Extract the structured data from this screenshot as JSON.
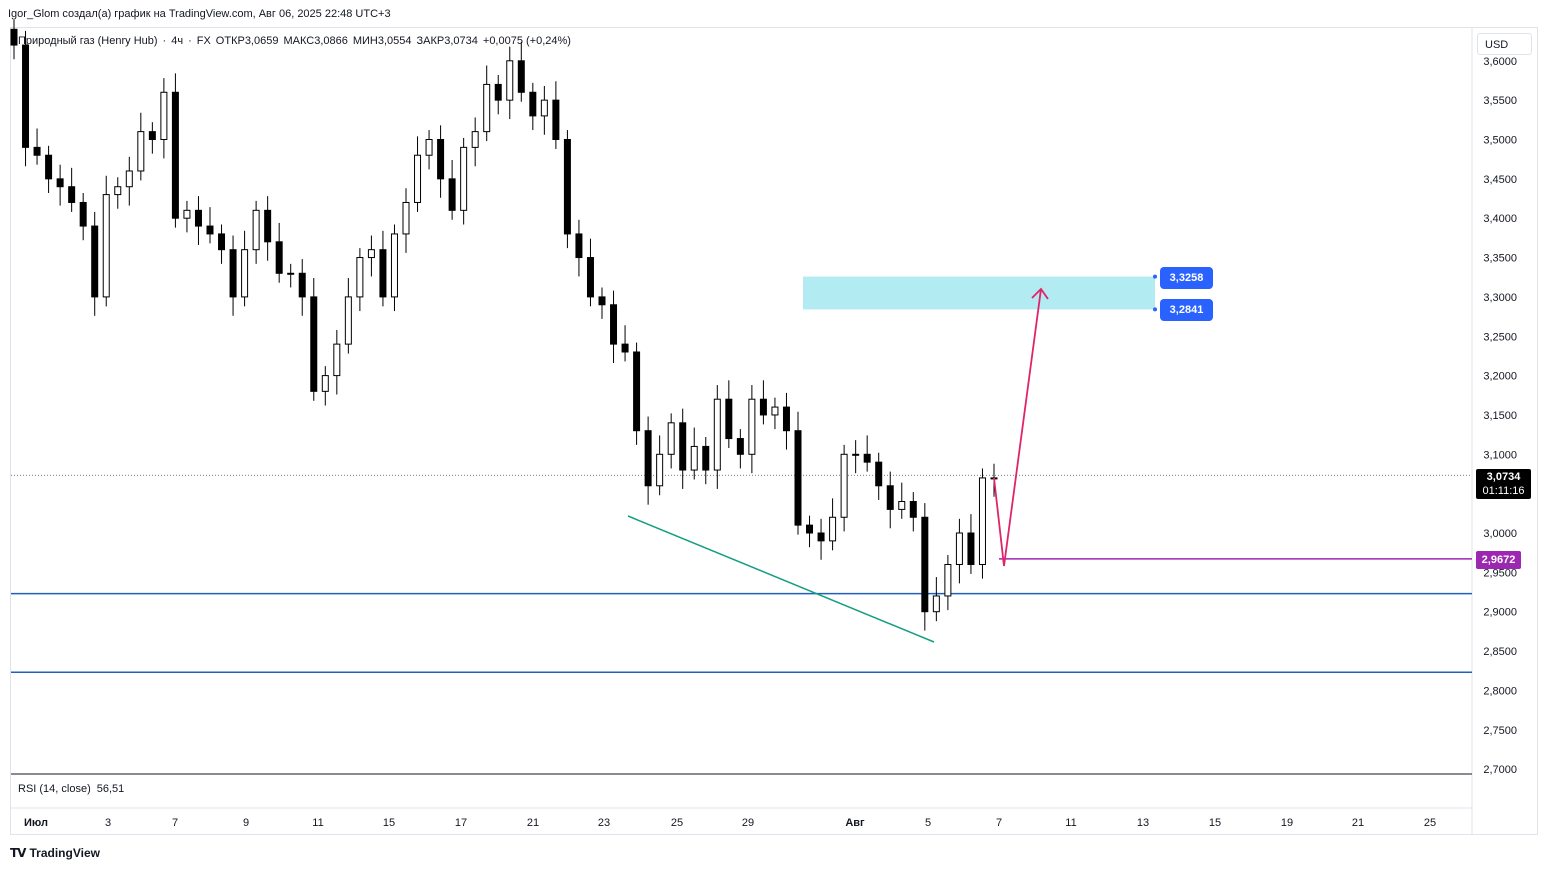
{
  "caption": "Igor_Glom создал(а) график на TradingView.com, Авг 06, 2025 22:48 UTC+3",
  "legend": {
    "symbol": "Природный газ (Henry Hub)",
    "sep1": "·",
    "interval": "4ч",
    "sep2": "·",
    "source": "FX",
    "open": "ОТКР3,0659",
    "high": "МАКС3,0866",
    "low": "МИН3,0554",
    "close": "ЗАКР3,0734",
    "change": "+0,0075 (+0,24%)"
  },
  "currency": "USD",
  "rsi": {
    "label": "RSI (14, close)",
    "value": "56,51"
  },
  "branding": "TradingView",
  "chart_data": {
    "type": "candlestick",
    "instrument": "Природный газ (Henry Hub)",
    "interval": "4ч",
    "currency": "USD",
    "ylim": [
      2.7,
      3.0
    ],
    "y_ticks": [
      "3,6000",
      "3,5500",
      "3,5000",
      "3,4500",
      "3,4000",
      "3,3500",
      "3,3000",
      "3,2500",
      "3,2000",
      "3,1500",
      "3,1000",
      "3,0500",
      "3,0000",
      "2,9500",
      "2,9000",
      "2,8500",
      "2,8000",
      "2,7500",
      "2,7000"
    ],
    "x_ticks": [
      "Июл",
      "3",
      "7",
      "9",
      "11",
      "15",
      "17",
      "21",
      "23",
      "25",
      "29",
      "Авг",
      "5",
      "7",
      "11",
      "13",
      "15",
      "19",
      "21",
      "25"
    ],
    "candles_close": [
      3.62,
      3.49,
      3.48,
      3.45,
      3.44,
      3.42,
      3.39,
      3.3,
      3.43,
      3.44,
      3.46,
      3.51,
      3.5,
      3.56,
      3.4,
      3.41,
      3.39,
      3.38,
      3.36,
      3.3,
      3.36,
      3.41,
      3.37,
      3.33,
      3.33,
      3.3,
      3.18,
      3.2,
      3.24,
      3.3,
      3.35,
      3.36,
      3.3,
      3.38,
      3.42,
      3.48,
      3.5,
      3.45,
      3.41,
      3.49,
      3.51,
      3.57,
      3.55,
      3.6,
      3.56,
      3.53,
      3.55,
      3.5,
      3.38,
      3.35,
      3.3,
      3.29,
      3.24,
      3.23,
      3.13,
      3.06,
      3.1,
      3.14,
      3.08,
      3.11,
      3.08,
      3.17,
      3.12,
      3.1,
      3.17,
      3.15,
      3.16,
      3.13,
      3.01,
      3.0,
      2.99,
      3.02,
      3.1,
      3.1,
      3.09,
      3.06,
      3.03,
      3.04,
      3.02,
      2.9,
      2.92,
      2.96,
      3.0,
      2.96,
      3.07,
      3.07
    ],
    "last_price": "3,0734",
    "countdown": "01:11:16",
    "annotations": {
      "target_zone": {
        "top": 3.3258,
        "bottom": 3.2841,
        "top_label": "3,3258",
        "bottom_label": "3,2841"
      },
      "level_marker": {
        "value": 2.9672,
        "label": "2,9672"
      },
      "support_lines": [
        2.923,
        2.823
      ],
      "projection_path": [
        3.07,
        2.967,
        3.31
      ]
    }
  },
  "colors": {
    "candle_up": "#ffffff",
    "candle_down": "#000000",
    "candle_border": "#000000",
    "support_line": "#1e5fbf",
    "trend_line": "#129e80",
    "projection": "#e0246a",
    "level_line": "#9c27b0",
    "zone": "#b2ebf2",
    "price_tag": "#2962ff",
    "last_price_tag": "#000000"
  }
}
